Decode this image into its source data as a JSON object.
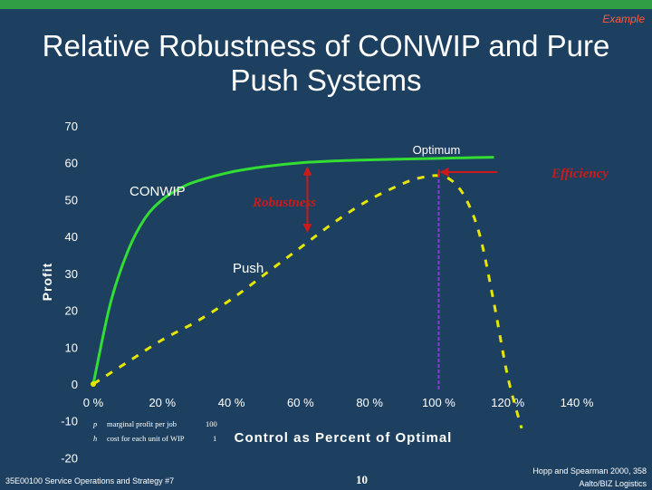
{
  "header": {
    "tag": "Example",
    "title_line1": "Relative Robustness of CONWIP and Pure",
    "title_line2": "Push Systems"
  },
  "colors": {
    "background": "#1d4060",
    "accent_bar": "#2f9e44",
    "conwip": "#33dd33",
    "push": "#e6e600",
    "annotation": "#cc1a1a",
    "optimum_line": "#8a3ad6"
  },
  "chart_data": {
    "type": "line",
    "xlabel": "Control as Percent of Optimal",
    "ylabel": "Profit",
    "xlim": [
      0,
      140
    ],
    "ylim": [
      -20,
      70
    ],
    "x_ticks": [
      "0 %",
      "20 %",
      "40 %",
      "60 %",
      "80 %",
      "100 %",
      "120 %",
      "140 %"
    ],
    "x_tick_values": [
      0,
      20,
      40,
      60,
      80,
      100,
      120,
      140
    ],
    "y_ticks": [
      "70",
      "60",
      "50",
      "40",
      "30",
      "20",
      "10",
      "0",
      "-10",
      "-20"
    ],
    "y_tick_values": [
      70,
      60,
      50,
      40,
      30,
      20,
      10,
      0,
      -10,
      -20
    ],
    "series": [
      {
        "name": "CONWIP",
        "style": "solid",
        "x": [
          0,
          5,
          10,
          15,
          20,
          25,
          30,
          40,
          50,
          60,
          70,
          80,
          90,
          100,
          110,
          116
        ],
        "y": [
          0,
          22,
          36,
          45,
          50,
          53,
          55,
          57.5,
          59,
          60,
          60.5,
          60.8,
          61,
          61.2,
          61.4,
          61.5
        ]
      },
      {
        "name": "Push",
        "style": "dashed",
        "x": [
          0,
          10,
          20,
          30,
          40,
          50,
          60,
          70,
          80,
          90,
          95,
          100,
          104,
          108,
          112,
          116,
          120,
          124
        ],
        "y": [
          0,
          6,
          12,
          17,
          23,
          30,
          37,
          44,
          50,
          54.5,
          56,
          56.5,
          55,
          50,
          40,
          22,
          2,
          -12
        ]
      }
    ],
    "annotations": {
      "optimum": "Optimum",
      "efficiency": "Efficiency",
      "robustness": "Robustness",
      "conwip_label": "CONWIP",
      "push_label": "Push",
      "optimum_x": 100,
      "efficiency_from_x": 117,
      "robustness_x": 62,
      "robustness_from_y": 60,
      "robustness_to_y": 41
    },
    "legend": {
      "p_symbol": "p",
      "p_text": "marginal profit per job",
      "p_value": "100",
      "h_symbol": "h",
      "h_text": "cost for each unit of WIP",
      "h_value": "1"
    }
  },
  "footer": {
    "left": "35E00100 Service Operations and Strategy #7",
    "center": "10",
    "right_line1": "Hopp and Spearman 2000, 358",
    "right_line2": "Aalto/BIZ Logistics"
  }
}
